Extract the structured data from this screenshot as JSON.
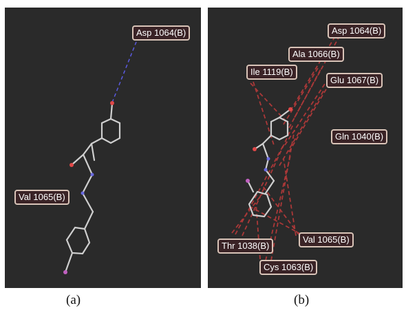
{
  "panel_a": {
    "caption": "(a)",
    "residues": [
      "Asp 1064(B)",
      "Val 1065(B)"
    ]
  },
  "panel_b": {
    "caption": "(b)",
    "residues": [
      "Asp 1064(B)",
      "Ala 1066(B)",
      "Ile 1119(B)",
      "Glu 1067(B)",
      "Gln 1040(B)",
      "Val 1065(B)",
      "Thr 1038(B)",
      "Cys 1063(B)"
    ]
  },
  "colors": {
    "background": "#2a2a2a",
    "label_fill": "#3a2326",
    "label_border": "#d9c4b8",
    "hbond": "#5a5ae0",
    "hydrophobic": "#c23b3b",
    "bond": "#cfcfcf",
    "oxygen": "#e04848",
    "nitrogen": "#6a6ae0",
    "fluorine": "#c060c0"
  }
}
